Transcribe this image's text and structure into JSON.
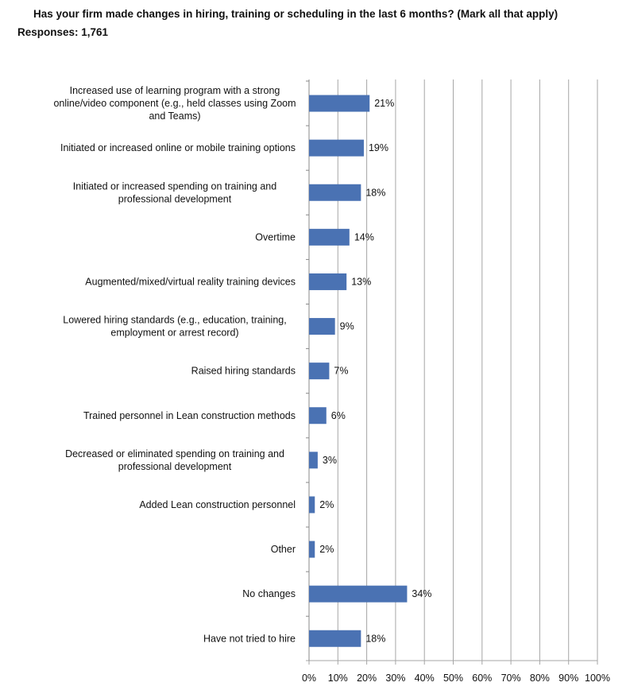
{
  "chart_data": {
    "type": "bar",
    "orientation": "horizontal",
    "title": "Has your firm made changes in hiring, training or scheduling in the last 6 months? (Mark all that apply) Responses: 1,761",
    "categories": [
      [
        "Increased use of learning program with a strong",
        "online/video component (e.g., held classes using Zoom",
        "and Teams)"
      ],
      [
        "Initiated or increased online or mobile training options"
      ],
      [
        "Initiated or increased spending on training and",
        "professional development"
      ],
      [
        "Overtime"
      ],
      [
        "Augmented/mixed/virtual reality training devices"
      ],
      [
        "Lowered hiring standards (e.g., education, training,",
        "employment or arrest record)"
      ],
      [
        "Raised hiring standards"
      ],
      [
        "Trained personnel in Lean construction methods"
      ],
      [
        "Decreased or eliminated spending on training and",
        "professional development"
      ],
      [
        "Added Lean construction personnel"
      ],
      [
        "Other"
      ],
      [
        "No changes"
      ],
      [
        "Have not tried to hire"
      ]
    ],
    "values": [
      21,
      19,
      18,
      14,
      13,
      9,
      7,
      6,
      3,
      2,
      2,
      34,
      18
    ],
    "data_labels": [
      "21%",
      "19%",
      "18%",
      "14%",
      "13%",
      "9%",
      "7%",
      "6%",
      "3%",
      "2%",
      "2%",
      "34%",
      "18%"
    ],
    "xlim": [
      0,
      100
    ],
    "xticks": [
      "0%",
      "10%",
      "20%",
      "30%",
      "40%",
      "50%",
      "60%",
      "70%",
      "80%",
      "90%",
      "100%"
    ],
    "grid": true,
    "bar_color": "#4a72b3",
    "xlabel": "",
    "ylabel": ""
  }
}
